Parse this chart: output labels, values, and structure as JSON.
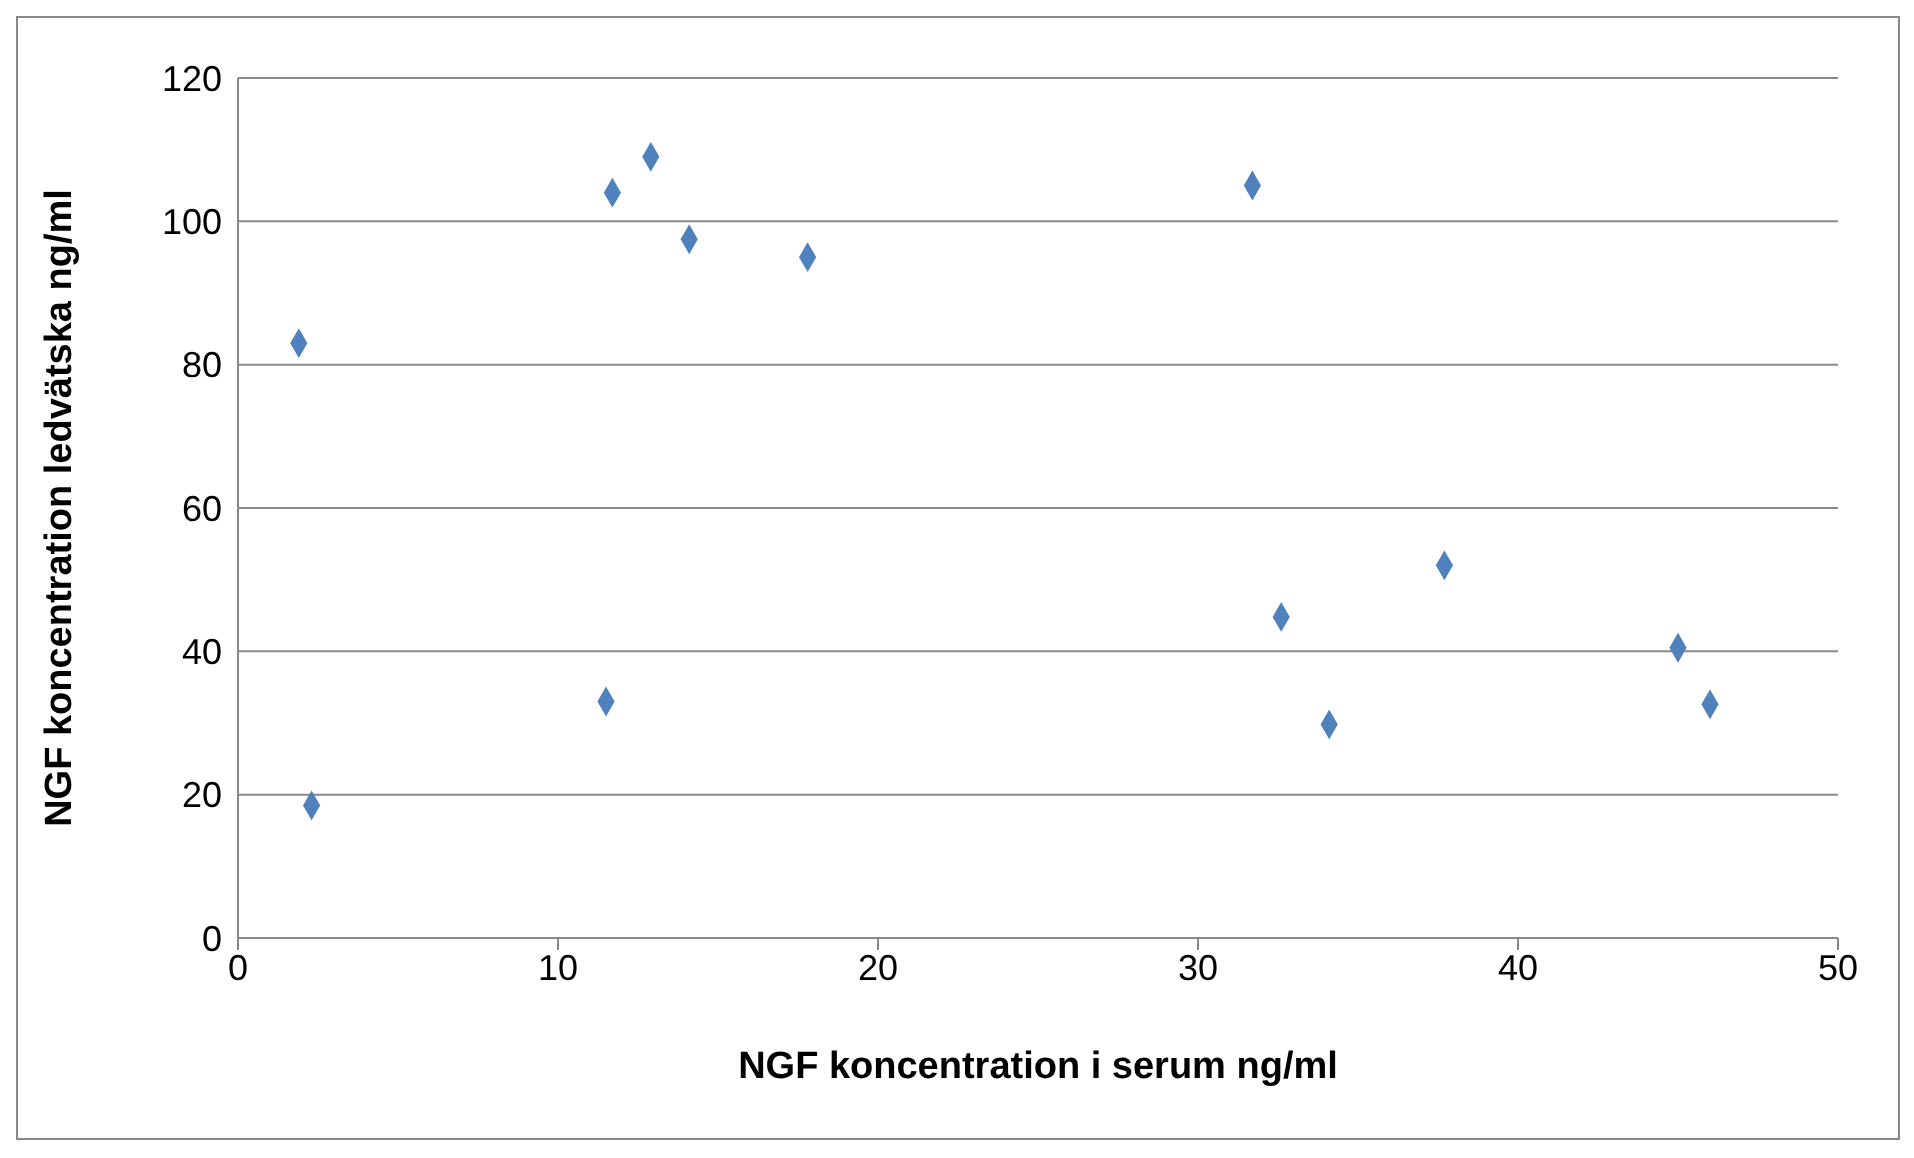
{
  "chart_data": {
    "type": "scatter",
    "xlabel": "NGF koncentration i serum ng/ml",
    "ylabel": "NGF koncentration ledvätska ng/ml",
    "x": [
      1.9,
      2.3,
      11.7,
      12.9,
      14.1,
      17.8,
      11.5,
      31.7,
      32.6,
      34.1,
      37.7,
      45.0,
      46.0
    ],
    "series": [
      {
        "color": "#4f81bd",
        "values": [
          83,
          18.5,
          104,
          109,
          97.5,
          95,
          33,
          105,
          44.8,
          29.8,
          52,
          40.5,
          32.6
        ]
      }
    ],
    "xlim": [
      0,
      50
    ],
    "xticks": [
      0,
      10,
      20,
      30,
      40,
      50
    ],
    "ylim": [
      0,
      120
    ],
    "yticks": [
      0,
      20,
      40,
      60,
      80,
      100,
      120
    ],
    "grid": "y",
    "marker": "diamond",
    "legend": false
  }
}
